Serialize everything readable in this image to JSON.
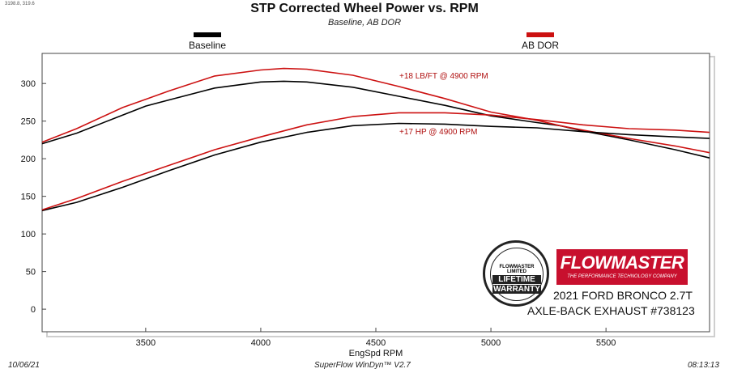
{
  "header": {
    "coords": "3198.8, 319.6",
    "title": "STP Corrected Wheel Power vs. RPM",
    "subtitle": "Baseline, AB DOR"
  },
  "legend": [
    {
      "label": "Baseline",
      "color": "#000000"
    },
    {
      "label": "AB DOR",
      "color": "#cc1111"
    }
  ],
  "annotations": {
    "torque": "+18 LB/FT @ 4900 RPM",
    "hp": "+17 HP @ 4900 RPM"
  },
  "branding": {
    "logo": "FLOWMASTER",
    "tagline": "THE PERFORMANCE TECHNOLOGY COMPANY",
    "warranty_top": "FLOWMASTER LIMITED",
    "warranty_line1": "LIFETIME",
    "warranty_line2": "WARRANTY",
    "product_line1": "2021 FORD BRONCO 2.7T",
    "product_line2": "AXLE-BACK EXHAUST #738123"
  },
  "footer": {
    "date": "10/06/21",
    "software": "SuperFlow WinDyn™ V2.7",
    "time": "08:13:13"
  },
  "chart_data": {
    "type": "line",
    "title": "STP Corrected Wheel Power vs. RPM",
    "subtitle": "Baseline, AB DOR",
    "xlabel": "EngSpd  RPM",
    "ylabel": "",
    "xlim": [
      3050,
      5950
    ],
    "ylim": [
      -30,
      340
    ],
    "xticks": [
      3500,
      4000,
      4500,
      5000,
      5500
    ],
    "yticks": [
      0,
      50,
      100,
      150,
      200,
      250,
      300
    ],
    "grid": false,
    "legend_position": "top",
    "series": [
      {
        "name": "Baseline",
        "metric": "torque",
        "color": "#000000",
        "x": [
          3050,
          3200,
          3400,
          3500,
          3600,
          3800,
          4000,
          4100,
          4200,
          4400,
          4600,
          4800,
          5000,
          5200,
          5300,
          5400,
          5600,
          5800,
          5950
        ],
        "y": [
          220,
          234,
          258,
          270,
          278,
          294,
          302,
          303,
          302,
          295,
          283,
          271,
          257,
          248,
          244,
          237,
          225,
          212,
          201
        ]
      },
      {
        "name": "AB DOR",
        "metric": "torque",
        "color": "#cc1111",
        "x": [
          3050,
          3200,
          3400,
          3500,
          3600,
          3800,
          4000,
          4100,
          4200,
          4400,
          4600,
          4800,
          5000,
          5200,
          5300,
          5400,
          5600,
          5800,
          5950
        ],
        "y": [
          222,
          240,
          268,
          279,
          290,
          310,
          318,
          320,
          319,
          311,
          296,
          280,
          262,
          251,
          244,
          238,
          227,
          217,
          208
        ]
      },
      {
        "name": "Baseline",
        "metric": "hp",
        "color": "#000000",
        "x": [
          3050,
          3200,
          3400,
          3600,
          3800,
          4000,
          4200,
          4400,
          4600,
          4800,
          5000,
          5200,
          5400,
          5600,
          5800,
          5950
        ],
        "y": [
          131,
          142,
          162,
          184,
          205,
          222,
          235,
          244,
          247,
          246,
          243,
          241,
          236,
          232,
          229,
          227
        ]
      },
      {
        "name": "AB DOR",
        "metric": "hp",
        "color": "#cc1111",
        "x": [
          3050,
          3200,
          3400,
          3600,
          3800,
          4000,
          4200,
          4400,
          4600,
          4800,
          5000,
          5200,
          5400,
          5600,
          5800,
          5950
        ],
        "y": [
          132,
          147,
          170,
          191,
          212,
          229,
          245,
          256,
          261,
          261,
          258,
          252,
          245,
          240,
          238,
          235
        ]
      }
    ]
  }
}
